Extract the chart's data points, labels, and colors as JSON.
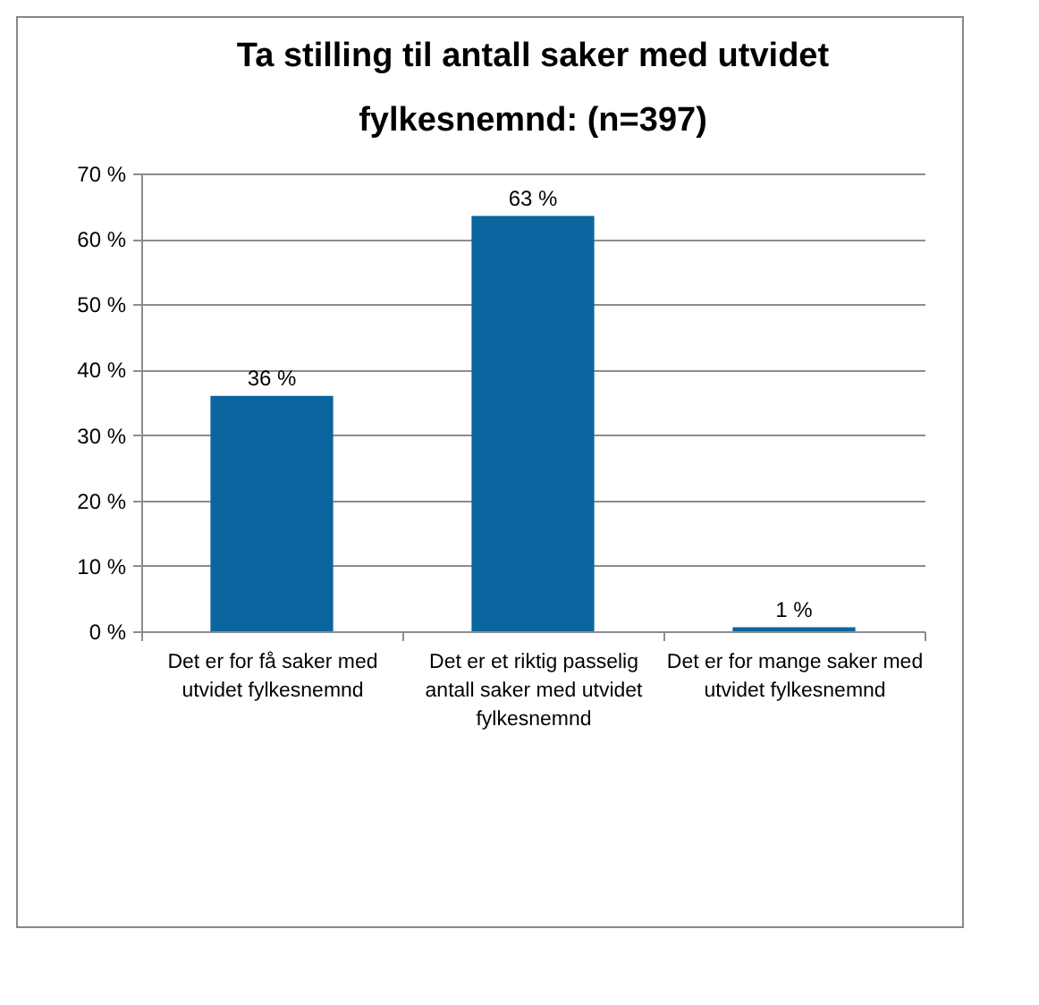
{
  "chart_data": {
    "type": "bar",
    "title": "Ta stilling til antall saker med utvidet fylkesnemnd: (n=397)",
    "categories": [
      "Det er for få saker med utvidet fylkesnemnd",
      "Det er et riktig passelig antall saker med utvidet fylkesnemnd",
      "Det er for mange saker med utvidet fylkesnemnd"
    ],
    "values": [
      36,
      63.5,
      0.6
    ],
    "value_labels": [
      "36 %",
      "63 %",
      "1 %"
    ],
    "color": "#0b66a0",
    "ylim": [
      0,
      70
    ],
    "yticks": [
      {
        "value": 0,
        "label": "0 %"
      },
      {
        "value": 10,
        "label": "10 %"
      },
      {
        "value": 20,
        "label": "20 %"
      },
      {
        "value": 30,
        "label": "30 %"
      },
      {
        "value": 40,
        "label": "40 %"
      },
      {
        "value": 50,
        "label": "50 %"
      },
      {
        "value": 60,
        "label": "60 %"
      },
      {
        "value": 70,
        "label": "70 %"
      }
    ],
    "grid": "y"
  }
}
